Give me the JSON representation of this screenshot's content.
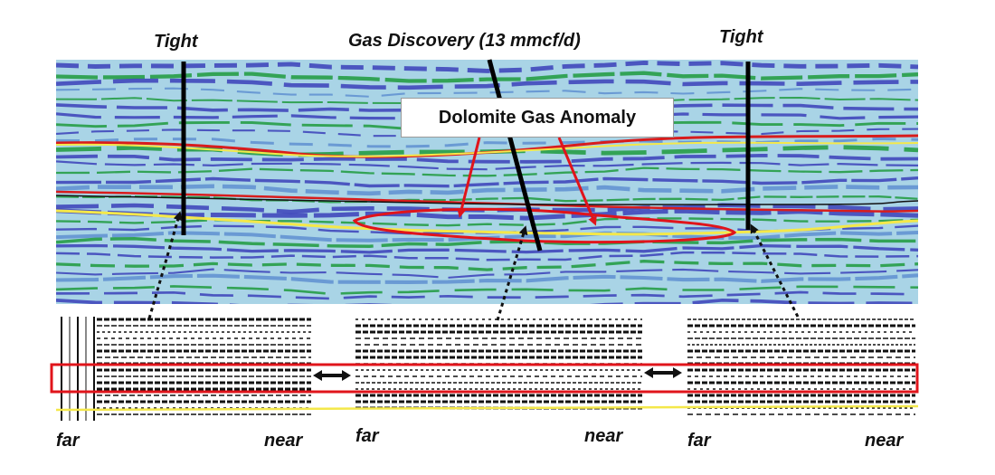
{
  "labels": {
    "well_left": "Tight",
    "well_center": "Gas Discovery (13 mmcf/d)",
    "well_right": "Tight",
    "anomaly": "Dolomite Gas Anomaly"
  },
  "gathers": [
    {
      "far": "far",
      "near": "near"
    },
    {
      "far": "far",
      "near": "near"
    },
    {
      "far": "far",
      "near": "near"
    }
  ],
  "colors": {
    "section_background": "#a9d4e6",
    "reflector_blue": "#3b3fb8",
    "reflector_green": "#1f9a3c",
    "horizon_yellow": "#f4e84a",
    "horizon_red": "#d81c1c",
    "anomaly_outline": "#e0141b",
    "well_path": "#000000"
  }
}
